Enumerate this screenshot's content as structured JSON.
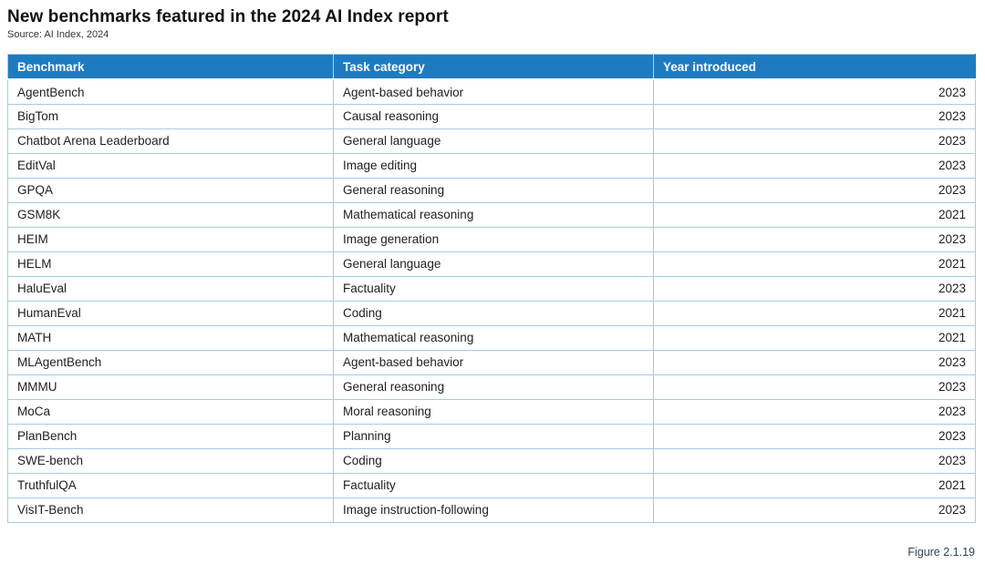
{
  "page": {
    "source": "Source: AI Index, 2024",
    "figure_label": "Figure 2.1.19"
  },
  "colors": {
    "header_bg": "#1f7bc0",
    "header_text": "#ffffff",
    "row_border": "#a5cbe7",
    "cell_text": "#212121",
    "title_text": "#111111",
    "source_text": "#333333",
    "figure_text": "#33424f"
  },
  "chart_data": {
    "type": "table",
    "title": "New benchmarks featured in the 2024 AI Index report",
    "columns": [
      "Benchmark",
      "Task category",
      "Year introduced"
    ],
    "rows": [
      [
        "AgentBench",
        "Agent-based behavior",
        "2023"
      ],
      [
        "BigTom",
        "Causal reasoning",
        "2023"
      ],
      [
        "Chatbot Arena Leaderboard",
        "General language",
        "2023"
      ],
      [
        "EditVal",
        "Image editing",
        "2023"
      ],
      [
        "GPQA",
        "General reasoning",
        "2023"
      ],
      [
        "GSM8K",
        "Mathematical reasoning",
        "2021"
      ],
      [
        "HEIM",
        "Image generation",
        "2023"
      ],
      [
        "HELM",
        "General language",
        "2021"
      ],
      [
        "HaluEval",
        "Factuality",
        "2023"
      ],
      [
        "HumanEval",
        "Coding",
        "2021"
      ],
      [
        "MATH",
        "Mathematical reasoning",
        "2021"
      ],
      [
        "MLAgentBench",
        "Agent-based behavior",
        "2023"
      ],
      [
        "MMMU",
        "General reasoning",
        "2023"
      ],
      [
        "MoCa",
        "Moral reasoning",
        "2023"
      ],
      [
        "PlanBench",
        "Planning",
        "2023"
      ],
      [
        "SWE-bench",
        "Coding",
        "2023"
      ],
      [
        "TruthfulQA",
        "Factuality",
        "2021"
      ],
      [
        "VisIT-Bench",
        "Image instruction-following",
        "2023"
      ]
    ]
  }
}
